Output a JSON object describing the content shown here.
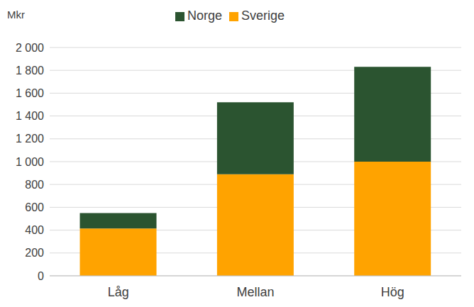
{
  "chart_data": {
    "type": "bar",
    "y_label": "Mkr",
    "categories": [
      "Låg",
      "Mellan",
      "Hög"
    ],
    "series": [
      {
        "name": "Sverige",
        "color": "#ffa300",
        "values": [
          415,
          890,
          1000
        ]
      },
      {
        "name": "Norge",
        "color": "#2b5430",
        "values": [
          135,
          630,
          830
        ]
      }
    ],
    "ylim": [
      0,
      2000
    ],
    "yticks": [
      0,
      200,
      400,
      600,
      800,
      {
        "value": 1000,
        "label": "1 000"
      },
      {
        "value": 1200,
        "label": "1 200"
      },
      {
        "value": 1400,
        "label": "1 400"
      },
      {
        "value": 1600,
        "label": "1 600"
      },
      {
        "value": 1800,
        "label": "1 800"
      },
      {
        "value": 2000,
        "label": "2 000"
      }
    ],
    "grid": true,
    "stacked": true,
    "legend": "top"
  }
}
